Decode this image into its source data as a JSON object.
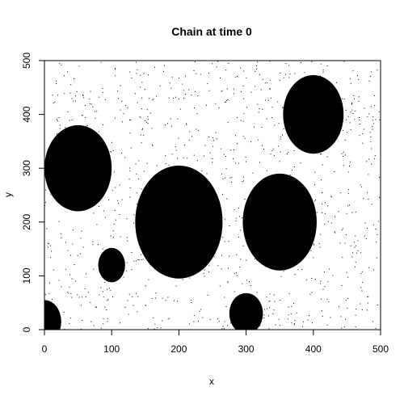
{
  "chart_data": {
    "type": "scatter",
    "title": "Chain at time 0",
    "xlabel": "x",
    "ylabel": "y",
    "xlim": [
      0,
      500
    ],
    "ylim": [
      0,
      500
    ],
    "x_ticks": [
      "0",
      "100",
      "200",
      "300",
      "400",
      "500"
    ],
    "y_ticks": [
      "0",
      "100",
      "200",
      "300",
      "400",
      "500"
    ],
    "grid": false,
    "legend": "none",
    "ellipses": [
      {
        "cx": 50,
        "cy": 300,
        "rx": 50,
        "ry": 80
      },
      {
        "cx": 200,
        "cy": 200,
        "rx": 65,
        "ry": 105
      },
      {
        "cx": 350,
        "cy": 200,
        "rx": 55,
        "ry": 90
      },
      {
        "cx": 400,
        "cy": 400,
        "rx": 45,
        "ry": 73
      },
      {
        "cx": 100,
        "cy": 120,
        "rx": 20,
        "ry": 32
      },
      {
        "cx": 300,
        "cy": 30,
        "rx": 25,
        "ry": 38
      },
      {
        "cx": 0,
        "cy": 15,
        "rx": 25,
        "ry": 40
      }
    ],
    "noise_points": 1100,
    "colors": {
      "fill": "#000000",
      "background": "#ffffff"
    }
  }
}
